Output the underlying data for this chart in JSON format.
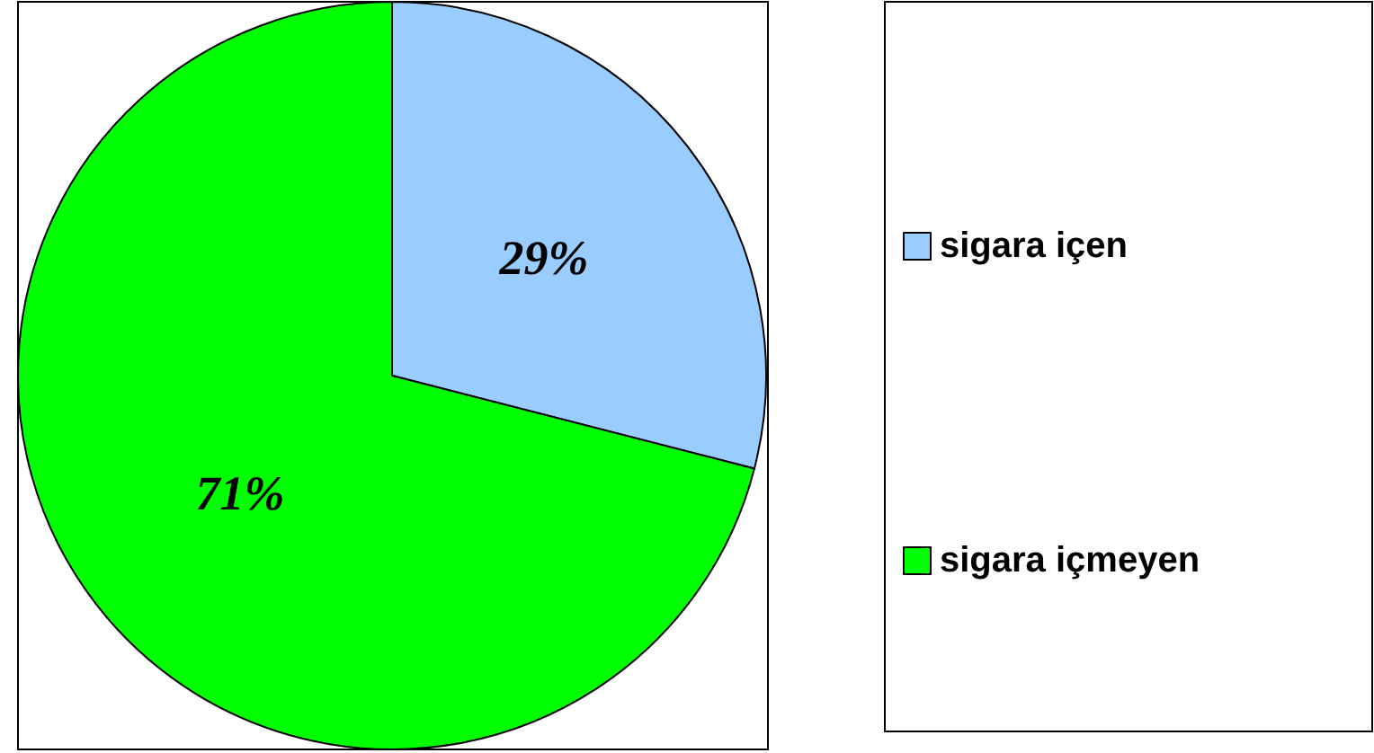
{
  "chart_data": {
    "type": "pie",
    "categories": [
      "sigara içen",
      "sigara içmeyen"
    ],
    "values": [
      29,
      71
    ],
    "colors": [
      "#99ccff",
      "#00ff00"
    ],
    "value_labels": [
      "29%",
      "71%"
    ],
    "legend": "right"
  }
}
